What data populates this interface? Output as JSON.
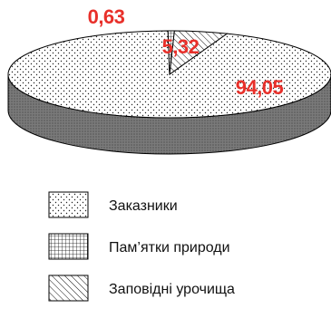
{
  "chart_data": {
    "type": "pie",
    "style": "3d",
    "title": "",
    "categories": [
      "Заказники",
      "Пам’ятки природи",
      "Заповідні урочища"
    ],
    "values": [
      94.05,
      0.63,
      5.32
    ],
    "data_labels": [
      "94,05",
      "0,63",
      "5,32"
    ],
    "fill_patterns": [
      "dots",
      "grid",
      "diagonal-hatch"
    ],
    "legend_position": "bottom"
  },
  "colors": {
    "label": "#e8302a",
    "outline": "#000000",
    "side_fill": "#6e6e6e",
    "background": "#ffffff"
  }
}
